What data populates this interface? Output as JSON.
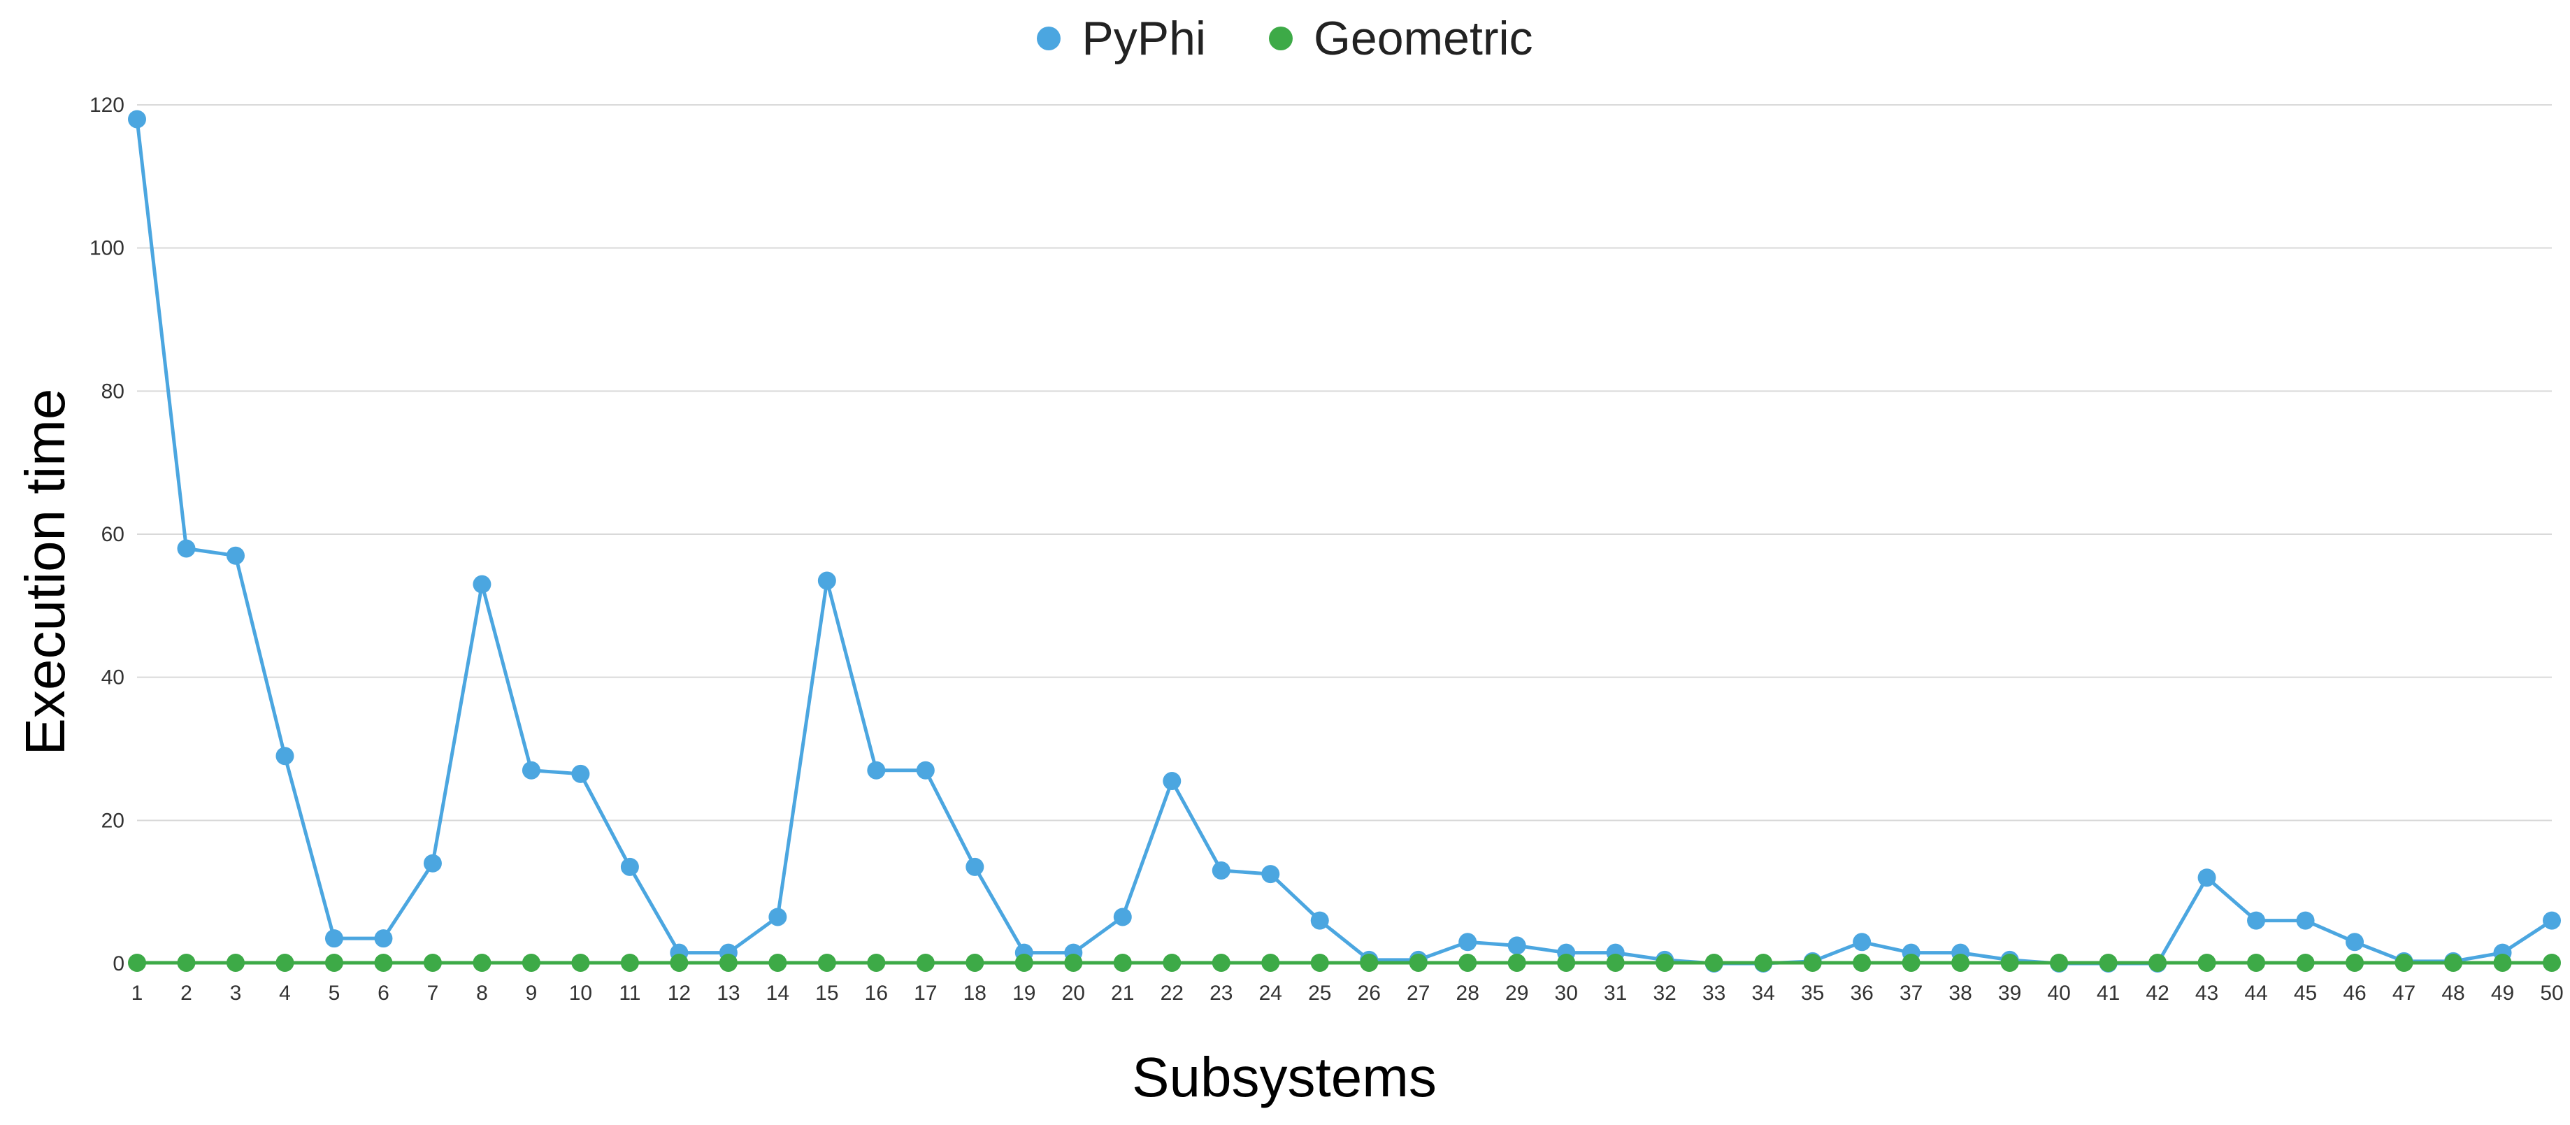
{
  "chart_data": {
    "type": "line",
    "title": "",
    "xlabel": "Subsystems",
    "ylabel": "Execution time",
    "categories": [
      "1",
      "2",
      "3",
      "4",
      "5",
      "6",
      "7",
      "8",
      "9",
      "10",
      "11",
      "12",
      "13",
      "14",
      "15",
      "16",
      "17",
      "18",
      "19",
      "20",
      "21",
      "22",
      "23",
      "24",
      "25",
      "26",
      "27",
      "28",
      "29",
      "30",
      "31",
      "32",
      "33",
      "34",
      "35",
      "36",
      "37",
      "38",
      "39",
      "40",
      "41",
      "42",
      "43",
      "44",
      "45",
      "46",
      "47",
      "48",
      "49",
      "50"
    ],
    "ylim": [
      0,
      120
    ],
    "yticks": [
      "0",
      "20",
      "40",
      "60",
      "80",
      "100",
      "120"
    ],
    "grid": "horizontal",
    "legend_position": "top-center",
    "series": [
      {
        "name": "PyPhi",
        "color": "#4ba6e0",
        "values": [
          118,
          58,
          57,
          29,
          3.5,
          3.5,
          14,
          53,
          27,
          26.5,
          13.5,
          1.5,
          1.5,
          6.5,
          53.5,
          27,
          27,
          13.5,
          1.5,
          1.5,
          6.5,
          25.5,
          13,
          12.5,
          6,
          0.5,
          0.5,
          3,
          2.5,
          1.5,
          1.5,
          0.5,
          0,
          0,
          0.3,
          3,
          1.5,
          1.5,
          0.5,
          0,
          0,
          0,
          12,
          6,
          6,
          3,
          0.3,
          0.3,
          1.5,
          6
        ]
      },
      {
        "name": "Geometric",
        "color": "#3daa47",
        "values": [
          0.1,
          0.1,
          0.1,
          0.1,
          0.1,
          0.1,
          0.1,
          0.1,
          0.1,
          0.1,
          0.1,
          0.1,
          0.1,
          0.1,
          0.1,
          0.1,
          0.1,
          0.1,
          0.1,
          0.1,
          0.1,
          0.1,
          0.1,
          0.1,
          0.1,
          0.1,
          0.1,
          0.1,
          0.1,
          0.1,
          0.1,
          0.1,
          0.1,
          0.1,
          0.1,
          0.1,
          0.1,
          0.1,
          0.1,
          0.1,
          0.1,
          0.1,
          0.1,
          0.1,
          0.1,
          0.1,
          0.1,
          0.1,
          0.1,
          0.1
        ]
      }
    ]
  }
}
